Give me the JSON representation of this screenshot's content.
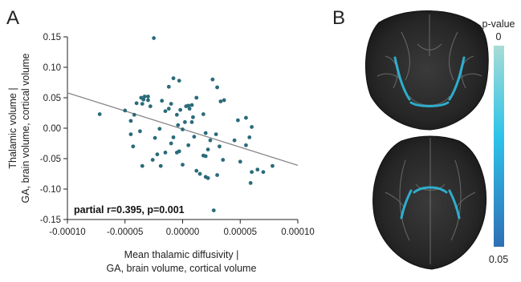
{
  "panels": {
    "a": "A",
    "b": "B"
  },
  "chart_data": {
    "type": "scatter",
    "xlabel": [
      "Mean thalamic diffusivity |",
      "GA, brain volume, cortical volume"
    ],
    "ylabel": [
      "Thalamic volume |",
      "GA, brain volume, cortical volume"
    ],
    "xlim": [
      -0.0001,
      0.0001
    ],
    "ylim": [
      -0.15,
      0.15
    ],
    "x_ticks": [
      -0.0001,
      -5e-05,
      0,
      5e-05,
      0.0001
    ],
    "x_tick_labels": [
      "-0.00010",
      "-0.00005",
      "0.00000",
      "0.00005",
      "0.00010"
    ],
    "y_ticks": [
      0.15,
      0.1,
      0.05,
      0,
      -0.05,
      -0.1,
      -0.15
    ],
    "y_tick_labels": [
      "0.15",
      "0.10",
      "0.05",
      "0.00",
      "-0.05",
      "-0.10",
      "-0.15"
    ],
    "annotation": "partial r=0.395, p=0.001",
    "grid": false,
    "point_color": "#2a6b7a",
    "line_color": "#888888",
    "regression": {
      "x": [
        -0.0001,
        0.0001
      ],
      "y": [
        0.058,
        -0.061
      ]
    },
    "points": [
      [
        -2.5e-05,
        0.148
      ],
      [
        -7.2e-05,
        0.023
      ],
      [
        -5e-05,
        0.029
      ],
      [
        -4.5e-05,
        0.012
      ],
      [
        -4e-05,
        0.041
      ],
      [
        -3.6e-05,
        0.05
      ],
      [
        -3.4e-05,
        0.047
      ],
      [
        -3e-05,
        0.046
      ],
      [
        -3.3e-05,
        0.052
      ],
      [
        -3e-05,
        0.052
      ],
      [
        -2.8e-05,
        0.036
      ],
      [
        -3.5e-05,
        0.04
      ],
      [
        -4.2e-05,
        0.022
      ],
      [
        -4.5e-05,
        -0.01
      ],
      [
        -4.3e-05,
        -0.03
      ],
      [
        -3.7e-05,
        -0.005
      ],
      [
        -3.5e-05,
        -0.062
      ],
      [
        -2.6e-05,
        -0.052
      ],
      [
        -2.2e-05,
        -0.043
      ],
      [
        -2.4e-05,
        -0.016
      ],
      [
        -2e-05,
        -0.001
      ],
      [
        -1.8e-05,
        0.045
      ],
      [
        -1.5e-05,
        0.028
      ],
      [
        -1.2e-05,
        0.032
      ],
      [
        -1.2e-05,
        0.068
      ],
      [
        -1e-05,
        0.04
      ],
      [
        -8e-06,
        0.082
      ],
      [
        -5e-06,
        0.022
      ],
      [
        -3e-06,
        0.078
      ],
      [
        -2e-06,
        0.03
      ],
      [
        -4e-06,
        0.005
      ],
      [
        0.0,
        -0.002
      ],
      [
        2e-06,
        0.01
      ],
      [
        3e-06,
        0.036
      ],
      [
        5e-06,
        0.037
      ],
      [
        6e-06,
        0.032
      ],
      [
        8e-06,
        0.038
      ],
      [
        9e-06,
        0.018
      ],
      [
        8e-06,
        0.01
      ],
      [
        1.2e-05,
        0.05
      ],
      [
        1.8e-05,
        0.023
      ],
      [
        2e-05,
        -0.008
      ],
      [
        2.4e-05,
        -0.02
      ],
      [
        2.6e-05,
        0.08
      ],
      [
        3e-05,
        0.067
      ],
      [
        3.3e-05,
        0.044
      ],
      [
        3.6e-05,
        0.046
      ],
      [
        2.9e-05,
        -0.01
      ],
      [
        3.2e-05,
        -0.03
      ],
      [
        3.5e-05,
        -0.052
      ],
      [
        2.2e-05,
        -0.035
      ],
      [
        2e-05,
        -0.046
      ],
      [
        2e-05,
        -0.08
      ],
      [
        2.2e-05,
        -0.082
      ],
      [
        3e-05,
        -0.077
      ],
      [
        2.7e-05,
        -0.135
      ],
      [
        4.8e-05,
        0.013
      ],
      [
        5.5e-05,
        0.017
      ],
      [
        6e-05,
        0.002
      ],
      [
        5.8e-05,
        -0.015
      ],
      [
        5.5e-05,
        -0.028
      ],
      [
        5e-05,
        -0.055
      ],
      [
        5.9e-05,
        -0.09
      ],
      [
        6e-05,
        -0.072
      ],
      [
        6.5e-05,
        -0.068
      ],
      [
        7e-05,
        -0.072
      ],
      [
        7.8e-05,
        -0.062
      ],
      [
        4.5e-05,
        -0.02
      ],
      [
        1.5e-05,
        -0.075
      ],
      [
        0.0,
        -0.06
      ],
      [
        -5e-06,
        -0.04
      ],
      [
        -1e-05,
        -0.025
      ],
      [
        -1.5e-05,
        -0.04
      ],
      [
        5e-06,
        -0.028
      ],
      [
        1e-05,
        -0.014
      ],
      [
        -8e-06,
        -0.015
      ],
      [
        1.2e-05,
        -0.07
      ],
      [
        -3e-06,
        -0.038
      ],
      [
        1.8e-05,
        -0.045
      ],
      [
        -1.9e-05,
        -0.062
      ]
    ]
  },
  "colorbar": {
    "title": "p-value",
    "top_label": "0",
    "bottom_label": "0.05",
    "top_color": "#a7dcd6",
    "mid_color": "#2ec3e8",
    "bottom_color": "#2e6fb5"
  }
}
